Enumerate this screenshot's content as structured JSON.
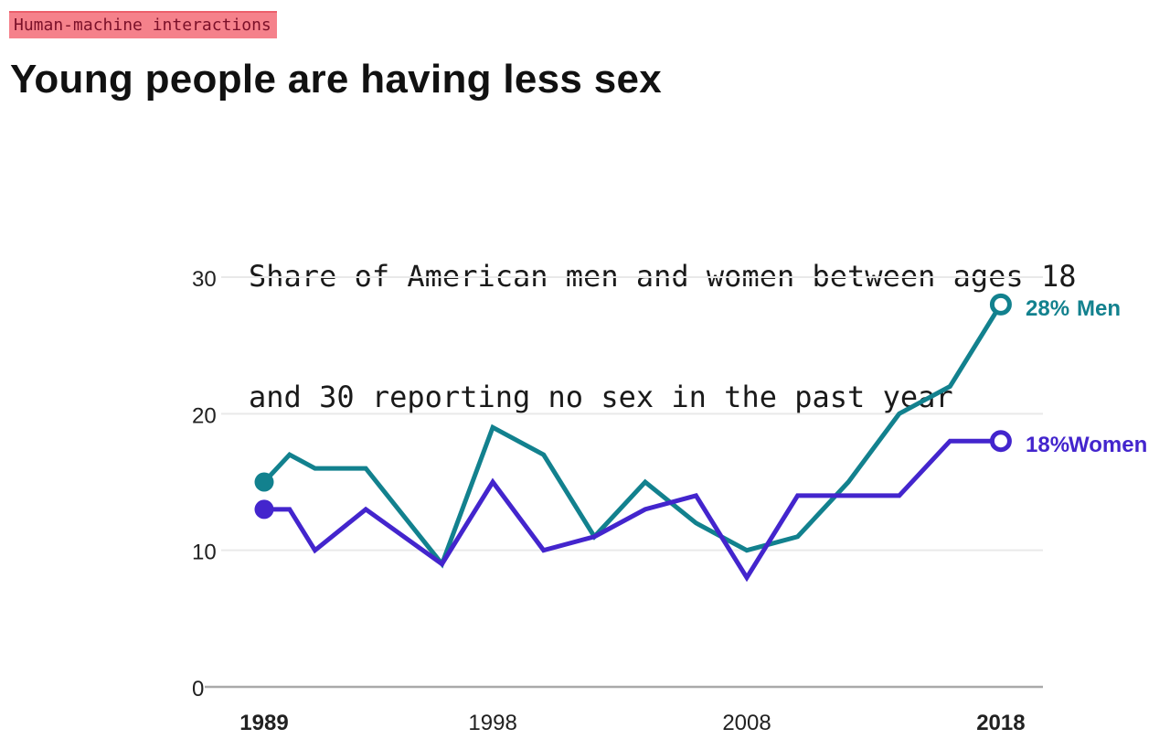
{
  "tag": {
    "label": "Human-machine interactions"
  },
  "title": "Young people are having less sex",
  "colors": {
    "tag_background": "#f5818b",
    "tag_text": "#7b1029",
    "men_line": "#12818e",
    "women_line": "#4325cd",
    "gridline": "#e9e9e9",
    "axis_line": "#a9a9a9",
    "tick_text": "#212121"
  },
  "chart_data": {
    "type": "line",
    "title": "Share of American men and women between ages 18 and 30 reporting no sex in the past year",
    "subtitle_lines": [
      "Share of American men and women between ages 18",
      "and 30 reporting no sex in the past year"
    ],
    "x_years": [
      1989,
      1990,
      1991,
      1993,
      1996,
      1998,
      2000,
      2002,
      2004,
      2006,
      2008,
      2010,
      2012,
      2014,
      2016,
      2018
    ],
    "series": [
      {
        "name": "Men",
        "color": "#12818e",
        "end_value_label": "28%",
        "values": [
          15,
          17,
          16,
          16,
          9,
          19,
          17,
          11,
          15,
          12,
          10,
          11,
          15,
          20,
          22,
          28
        ]
      },
      {
        "name": "Women",
        "color": "#4325cd",
        "end_value_label": "18%",
        "values": [
          13,
          13,
          10,
          13,
          9,
          15,
          10,
          11,
          13,
          14,
          8,
          14,
          14,
          14,
          18,
          18
        ]
      }
    ],
    "yticks": [
      0,
      10,
      20,
      30
    ],
    "xticks": [
      {
        "label": "1989",
        "year": 1989,
        "bold": true
      },
      {
        "label": "1998",
        "year": 1998,
        "bold": false
      },
      {
        "label": "2008",
        "year": 2008,
        "bold": false
      },
      {
        "label": "2018",
        "year": 2018,
        "bold": true
      }
    ],
    "xlabel": "",
    "ylabel": "",
    "xlim": [
      1989,
      2018
    ],
    "ylim": [
      0,
      31
    ],
    "grid": true,
    "legend_position": "line-end-labels",
    "marker_start": "filled-dot",
    "marker_end": "open-circle"
  }
}
